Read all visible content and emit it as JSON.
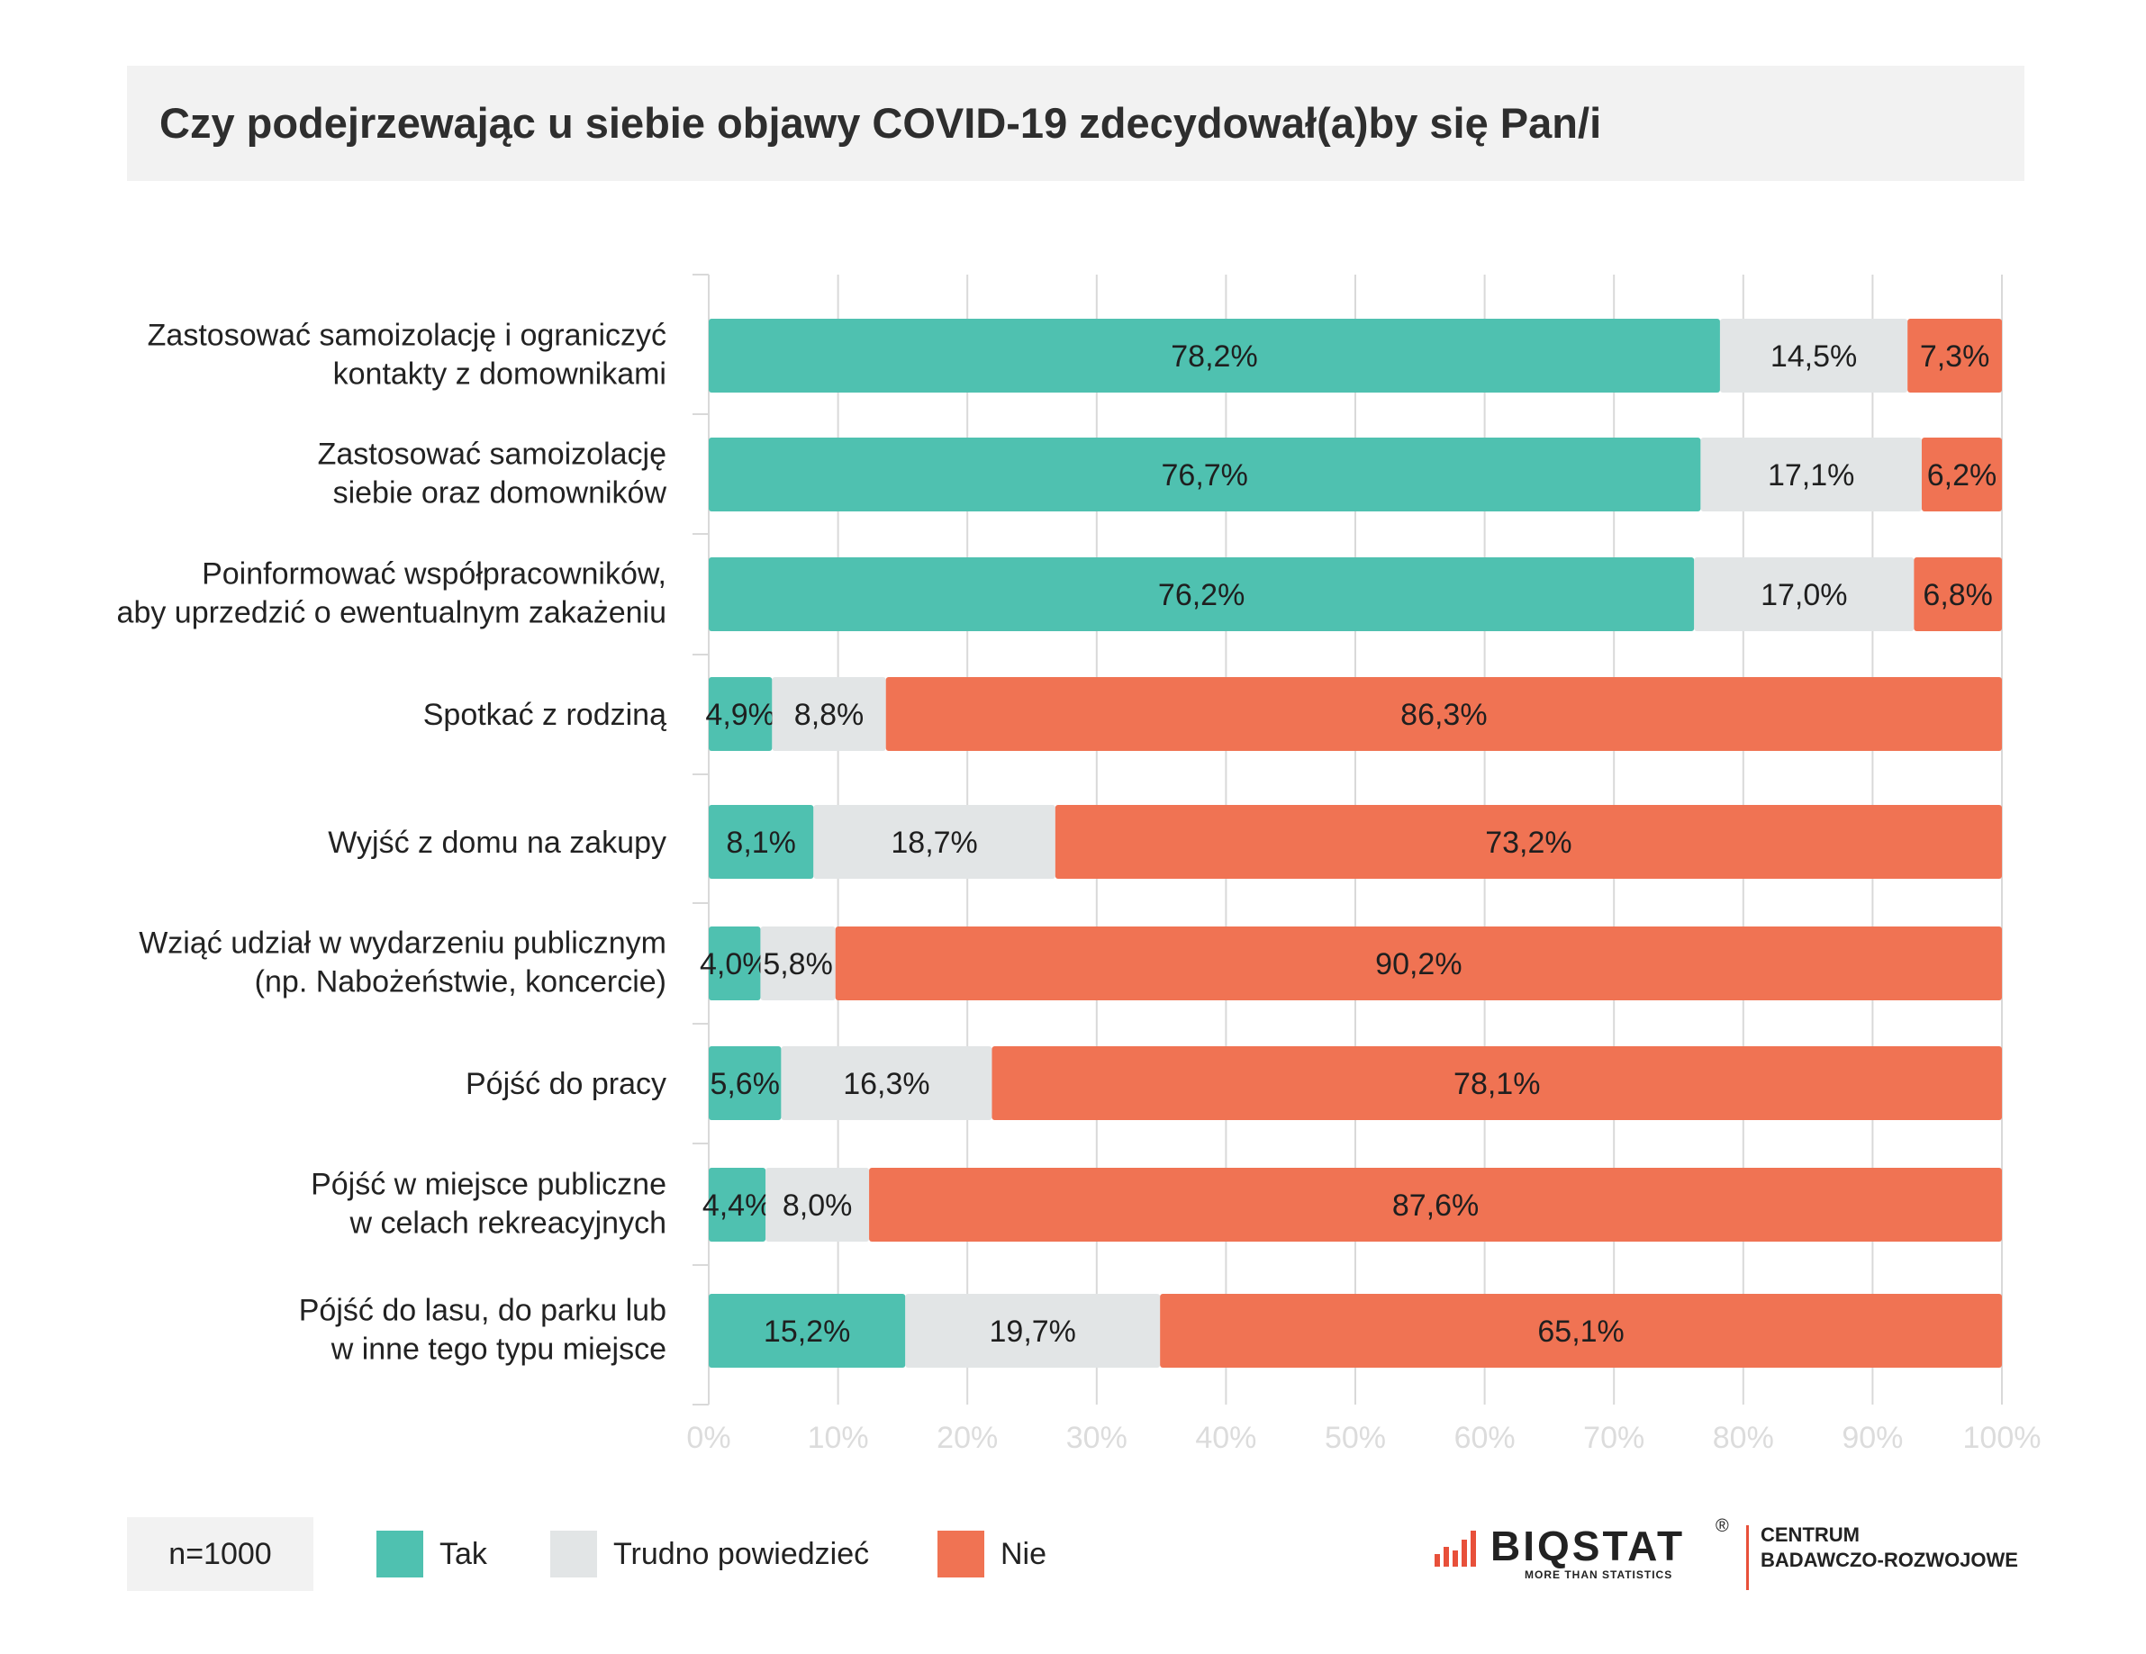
{
  "title": "Czy podejrzewając u siebie objawy COVID-19 zdecydował(a)by się Pan/i",
  "sample": "n=1000",
  "colors": {
    "tak": "#4fc1b0",
    "trudno": "#e2e5e6",
    "nie": "#f07353",
    "axis": "#d9d9d9",
    "tick_text": "#dcdcdc"
  },
  "logo": {
    "word": "BIQSTAT",
    "reg": "®",
    "tagline": "MORE THAN STATISTICS",
    "line1": "CENTRUM",
    "line2": "BADAWCZO-ROZWOJOWE"
  },
  "chart_data": {
    "type": "bar",
    "orientation": "horizontal",
    "stacked": true,
    "xlim": [
      0,
      100
    ],
    "x_ticks": [
      "0%",
      "10%",
      "20%",
      "30%",
      "40%",
      "50%",
      "60%",
      "70%",
      "80%",
      "90%",
      "100%"
    ],
    "grid": true,
    "legend_position": "bottom",
    "categories": [
      [
        "Zastosować samoizolację i ograniczyć",
        "kontakty z domownikami"
      ],
      [
        "Zastosować samoizolację",
        "siebie oraz domowników"
      ],
      [
        "Poinformować współpracowników,",
        "aby uprzedzić o ewentualnym zakażeniu"
      ],
      [
        "Spotkać z rodziną"
      ],
      [
        "Wyjść z domu na zakupy"
      ],
      [
        "Wziąć udział w wydarzeniu publicznym",
        "(np. Nabożeństwie, koncercie)"
      ],
      [
        "Pójść do pracy"
      ],
      [
        "Pójść w miejsce publiczne",
        "w celach rekreacyjnych"
      ],
      [
        "Pójść do lasu, do parku lub",
        "w inne tego typu miejsce"
      ]
    ],
    "series": [
      {
        "name": "Tak",
        "key": "tak",
        "values": [
          78.2,
          76.7,
          76.2,
          4.9,
          8.1,
          4.0,
          5.6,
          4.4,
          15.2
        ],
        "labels": [
          "78,2%",
          "76,7%",
          "76,2%",
          "4,9%",
          "8,1%",
          "4,0%",
          "5,6%",
          "4,4%",
          "15,2%"
        ]
      },
      {
        "name": "Trudno powiedzieć",
        "key": "trudno",
        "values": [
          14.5,
          17.1,
          17.0,
          8.8,
          18.7,
          5.8,
          16.3,
          8.0,
          19.7
        ],
        "labels": [
          "14,5%",
          "17,1%",
          "17,0%",
          "8,8%",
          "18,7%",
          "5,8%",
          "16,3%",
          "8,0%",
          "19,7%"
        ]
      },
      {
        "name": "Nie",
        "key": "nie",
        "values": [
          7.3,
          6.2,
          6.8,
          86.3,
          73.2,
          90.2,
          78.1,
          87.6,
          65.1
        ],
        "labels": [
          "7,3%",
          "6,2%",
          "6,8%",
          "86,3%",
          "73,2%",
          "90,2%",
          "78,1%",
          "87,6%",
          "65,1%"
        ]
      }
    ]
  }
}
